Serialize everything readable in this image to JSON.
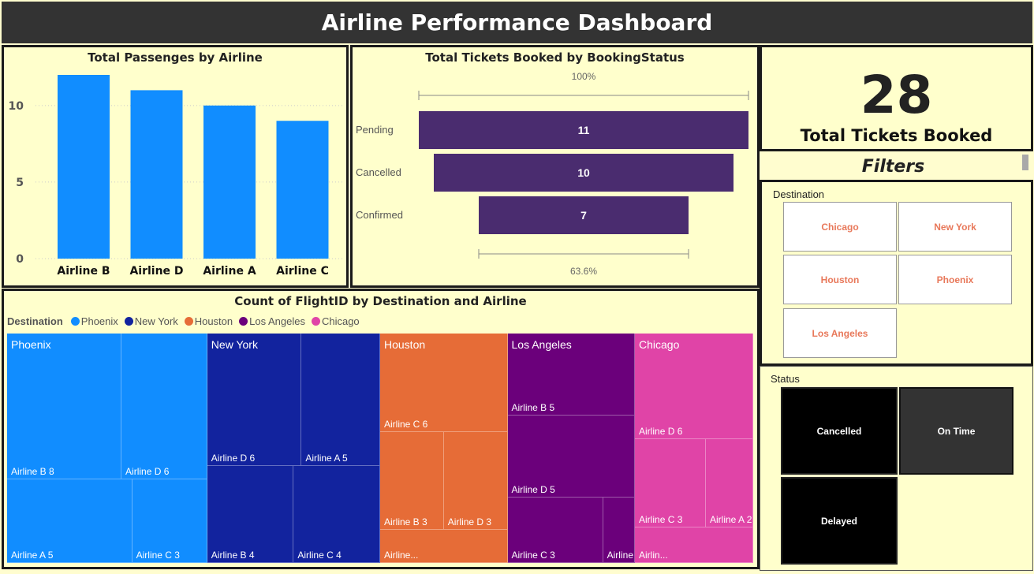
{
  "header": {
    "title": "Airline Performance Dashboard"
  },
  "bar_panel": {
    "title": "Total Passenges by Airline"
  },
  "funnel_panel": {
    "title": "Total Tickets Booked by BookingStatus"
  },
  "kpi": {
    "value": "28",
    "label": "Total Tickets Booked"
  },
  "filters": {
    "title": "Filters",
    "destination": {
      "label": "Destination",
      "options": [
        "Chicago",
        "New York",
        "Houston",
        "Phoenix",
        "Los Angeles"
      ]
    },
    "status": {
      "label": "Status",
      "options": [
        "Cancelled",
        "On Time",
        "Delayed"
      ]
    }
  },
  "treemap_panel": {
    "title": "Count of FlightID by Destination and Airline",
    "legend_title": "Destination"
  },
  "colors": {
    "Phoenix": "#118dff",
    "New York": "#12239e",
    "Houston": "#e66c37",
    "Los Angeles": "#6b007b",
    "Chicago": "#e044a7",
    "funnel": "#4a2c6f",
    "bar": "#118dff"
  },
  "chart_data": [
    {
      "type": "bar",
      "title": "Total Passenges by Airline",
      "categories": [
        "Airline B",
        "Airline D",
        "Airline A",
        "Airline C"
      ],
      "values": [
        12,
        11,
        10,
        9
      ],
      "ylim": [
        0,
        12
      ],
      "yticks": [
        0,
        5,
        10
      ],
      "grid": true
    },
    {
      "type": "bar",
      "subtype": "funnel",
      "title": "Total Tickets Booked by BookingStatus",
      "categories": [
        "Pending",
        "Cancelled",
        "Confirmed"
      ],
      "values": [
        11,
        10,
        7
      ],
      "top_label": "100%",
      "bottom_label": "63.6%"
    },
    {
      "type": "heatmap",
      "subtype": "treemap",
      "title": "Count of FlightID by Destination and Airline",
      "legend": [
        "Phoenix",
        "New York",
        "Houston",
        "Los Angeles",
        "Chicago"
      ],
      "groups": [
        {
          "name": "Phoenix",
          "items": [
            {
              "label": "Airline B 8",
              "airline": "Airline B",
              "value": 8
            },
            {
              "label": "Airline D 6",
              "airline": "Airline D",
              "value": 6
            },
            {
              "label": "Airline A 5",
              "airline": "Airline A",
              "value": 5
            },
            {
              "label": "Airline C 3",
              "airline": "Airline C",
              "value": 3
            }
          ]
        },
        {
          "name": "New York",
          "items": [
            {
              "label": "Airline D 6",
              "airline": "Airline D",
              "value": 6
            },
            {
              "label": "Airline A 5",
              "airline": "Airline A",
              "value": 5
            },
            {
              "label": "Airline B 4",
              "airline": "Airline B",
              "value": 4
            },
            {
              "label": "Airline C 4",
              "airline": "Airline C",
              "value": 4
            }
          ]
        },
        {
          "name": "Houston",
          "items": [
            {
              "label": "Airline C 6",
              "airline": "Airline C",
              "value": 6
            },
            {
              "label": "Airline B 3",
              "airline": "Airline B",
              "value": 3
            },
            {
              "label": "Airline D 3",
              "airline": "Airline D",
              "value": 3
            },
            {
              "label": "Airline...",
              "airline": "Airline A",
              "value": 2
            }
          ]
        },
        {
          "name": "Los Angeles",
          "items": [
            {
              "label": "Airline B 5",
              "airline": "Airline B",
              "value": 5
            },
            {
              "label": "Airline D 5",
              "airline": "Airline D",
              "value": 5
            },
            {
              "label": "Airline C 3",
              "airline": "Airline C",
              "value": 3
            },
            {
              "label": "Airline A 1",
              "airline": "Airline A",
              "value": 1
            }
          ]
        },
        {
          "name": "Chicago",
          "items": [
            {
              "label": "Airline D 6",
              "airline": "Airline D",
              "value": 6
            },
            {
              "label": "Airline C 3",
              "airline": "Airline C",
              "value": 3
            },
            {
              "label": "Airline A 2",
              "airline": "Airline A",
              "value": 2
            },
            {
              "label": "Airlin...",
              "airline": "Airline B",
              "value": 2
            }
          ]
        }
      ]
    }
  ]
}
